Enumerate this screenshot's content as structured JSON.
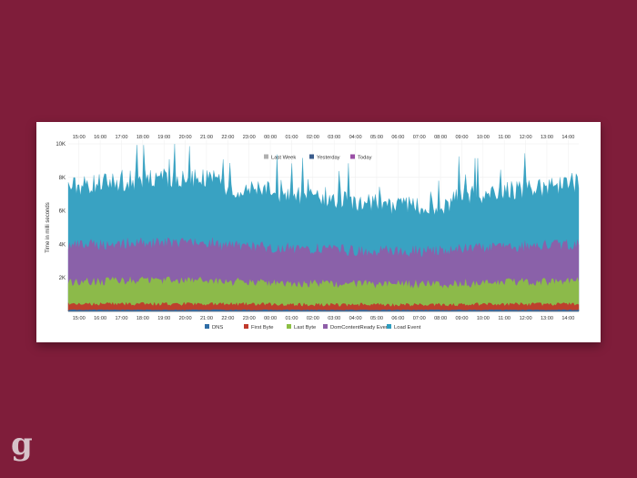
{
  "chart_data": {
    "type": "area",
    "ylabel": "Time in milli seconds",
    "ylim": [
      0,
      10000
    ],
    "y_ticks": [
      "2K",
      "4K",
      "6K",
      "8K",
      "10K"
    ],
    "y_tick_values": [
      2000,
      4000,
      6000,
      8000,
      10000
    ],
    "x_ticks": [
      "15:00",
      "16:00",
      "17:00",
      "18:00",
      "19:00",
      "20:00",
      "21:00",
      "22:00",
      "23:00",
      "00:00",
      "01:00",
      "02:00",
      "03:00",
      "04:00",
      "05:00",
      "06:00",
      "07:00",
      "08:00",
      "09:00",
      "10:00",
      "11:00",
      "12:00",
      "13:00",
      "14:00"
    ],
    "top_legend": [
      "Last Week",
      "Yesterday",
      "Today"
    ],
    "legend_position": "top and bottom",
    "series": [
      {
        "name": "DNS",
        "color": "#2f6ea6",
        "level": 80,
        "noise": 60,
        "mode": "flat"
      },
      {
        "name": "First Byte",
        "color": "#c0392b",
        "level": 420,
        "noise": 220,
        "mode": "flat"
      },
      {
        "name": "Last Byte",
        "color": "#8cbf44",
        "level": 1750,
        "noise": 520,
        "mode": "green"
      },
      {
        "name": "DomContentReady Event",
        "color": "#8e5ea8",
        "level": 3900,
        "noise": 700,
        "mode": "purple"
      },
      {
        "name": "Load Event",
        "color": "#2e9dbf",
        "level": 7400,
        "noise": 1300,
        "mode": "top"
      }
    ]
  },
  "top_legend_colors": [
    "#b0b0b0",
    "#3b5c8c",
    "#9a4fa6"
  ],
  "watermark": "g"
}
